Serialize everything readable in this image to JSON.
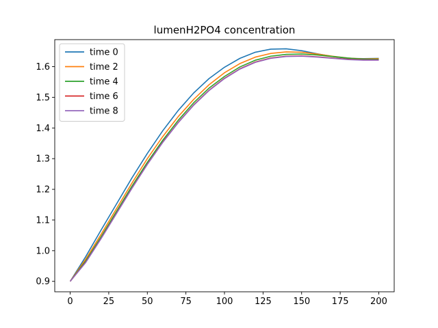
{
  "chart_data": {
    "type": "line",
    "title": "lumenH2PO4 concentration",
    "xlabel": "",
    "ylabel": "",
    "xlim": [
      -10,
      210
    ],
    "ylim": [
      0.866,
      1.688
    ],
    "xticks": [
      0,
      25,
      50,
      75,
      100,
      125,
      150,
      175,
      200
    ],
    "yticks": [
      0.9,
      1.0,
      1.1,
      1.2,
      1.3,
      1.4,
      1.5,
      1.6
    ],
    "ytick_labels": [
      "0.9",
      "1.0",
      "1.1",
      "1.2",
      "1.3",
      "1.4",
      "1.5",
      "1.6"
    ],
    "grid": false,
    "legend_position": "top-left",
    "x": [
      0,
      10,
      20,
      30,
      40,
      50,
      60,
      70,
      80,
      90,
      100,
      110,
      120,
      130,
      140,
      150,
      160,
      170,
      180,
      190,
      200
    ],
    "series": [
      {
        "name": "time 0",
        "color": "#1f77b4",
        "values": [
          0.9,
          0.98,
          1.067,
          1.152,
          1.237,
          1.317,
          1.391,
          1.457,
          1.514,
          1.561,
          1.598,
          1.627,
          1.647,
          1.657,
          1.658,
          1.652,
          1.642,
          1.633,
          1.627,
          1.626,
          1.627
        ]
      },
      {
        "name": "time 2",
        "color": "#ff7f0e",
        "values": [
          0.9,
          0.972,
          1.053,
          1.137,
          1.22,
          1.3,
          1.372,
          1.437,
          1.493,
          1.541,
          1.58,
          1.61,
          1.631,
          1.643,
          1.648,
          1.647,
          1.641,
          1.634,
          1.628,
          1.625,
          1.626
        ]
      },
      {
        "name": "time 4",
        "color": "#2ca02c",
        "values": [
          0.9,
          0.966,
          1.045,
          1.128,
          1.21,
          1.288,
          1.36,
          1.425,
          1.482,
          1.53,
          1.568,
          1.599,
          1.621,
          1.634,
          1.64,
          1.641,
          1.638,
          1.633,
          1.628,
          1.624,
          1.624
        ]
      },
      {
        "name": "time 6",
        "color": "#d62728",
        "values": [
          0.9,
          0.962,
          1.04,
          1.122,
          1.204,
          1.282,
          1.354,
          1.418,
          1.475,
          1.523,
          1.562,
          1.593,
          1.615,
          1.628,
          1.634,
          1.635,
          1.632,
          1.628,
          1.624,
          1.622,
          1.622
        ]
      },
      {
        "name": "time 8",
        "color": "#9467bd",
        "values": [
          0.9,
          0.961,
          1.039,
          1.121,
          1.203,
          1.281,
          1.353,
          1.417,
          1.474,
          1.522,
          1.561,
          1.592,
          1.614,
          1.627,
          1.633,
          1.634,
          1.631,
          1.627,
          1.623,
          1.621,
          1.621
        ]
      }
    ]
  }
}
